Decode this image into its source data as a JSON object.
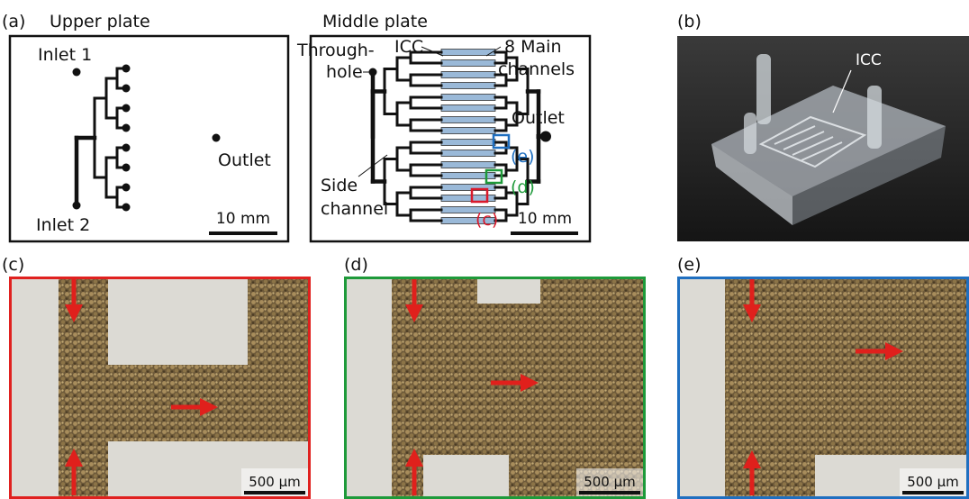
{
  "panel_a": {
    "label": "(a)",
    "upper_plate": {
      "title": "Upper plate",
      "inlet_1": "Inlet 1",
      "outlet": "Outlet",
      "inlet_2": "Inlet 2",
      "scale_bar": "10 mm"
    },
    "middle_plate": {
      "title": "Middle plate",
      "through_hole": [
        "Through-",
        "hole"
      ],
      "icc": "ICC",
      "main_channels": [
        "8 Main",
        "channels"
      ],
      "outlet": "Outlet",
      "markers": [
        "(e)",
        "(d)",
        "(c)"
      ],
      "side_channel": [
        "Side",
        "channel"
      ],
      "scale_bar": "10 mm"
    }
  },
  "panel_b": {
    "label": "(b)",
    "icc": "ICC"
  },
  "micrographs": [
    {
      "label": "(c)",
      "scale_bar": "500 µm"
    },
    {
      "label": "(d)",
      "scale_bar": "500 µm"
    },
    {
      "label": "(e)",
      "scale_bar": "500 µm"
    }
  ]
}
